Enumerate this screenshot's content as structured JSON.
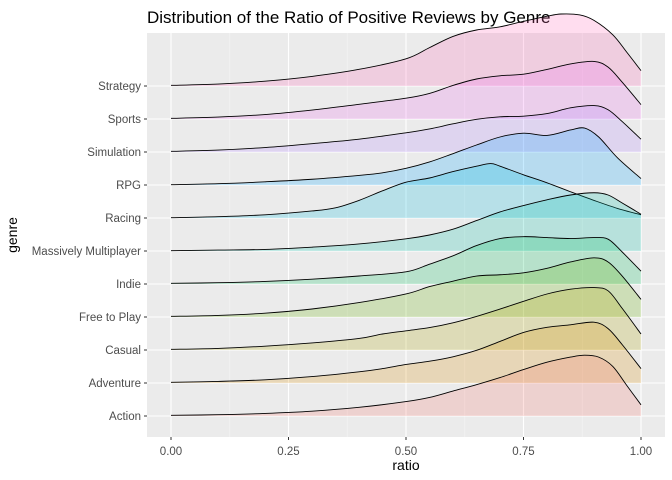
{
  "chart_data": {
    "type": "ridgeline",
    "title": "Distribution of the Ratio of Positive Reviews by Genre",
    "xlabel": "ratio",
    "ylabel": "genre",
    "xlim": [
      0,
      1
    ],
    "x_ticks": [
      "0.00",
      "0.25",
      "0.50",
      "0.75",
      "1.00"
    ],
    "grid": true,
    "legend": "none",
    "series": [
      {
        "name": "Action",
        "color": "#F8766D",
        "density": [
          [
            0,
            0.02
          ],
          [
            0.1,
            0.04
          ],
          [
            0.2,
            0.08
          ],
          [
            0.3,
            0.15
          ],
          [
            0.4,
            0.27
          ],
          [
            0.5,
            0.45
          ],
          [
            0.55,
            0.58
          ],
          [
            0.6,
            0.78
          ],
          [
            0.65,
            0.98
          ],
          [
            0.7,
            1.2
          ],
          [
            0.75,
            1.45
          ],
          [
            0.8,
            1.68
          ],
          [
            0.85,
            1.84
          ],
          [
            0.88,
            1.9
          ],
          [
            0.91,
            1.84
          ],
          [
            0.94,
            1.55
          ],
          [
            0.97,
            0.95
          ],
          [
            1,
            0.35
          ]
        ]
      },
      {
        "name": "Adventure",
        "color": "#DB8E00",
        "density": [
          [
            0,
            0.02
          ],
          [
            0.1,
            0.05
          ],
          [
            0.2,
            0.1
          ],
          [
            0.3,
            0.2
          ],
          [
            0.4,
            0.35
          ],
          [
            0.45,
            0.45
          ],
          [
            0.5,
            0.58
          ],
          [
            0.55,
            0.68
          ],
          [
            0.6,
            0.82
          ],
          [
            0.65,
            1.02
          ],
          [
            0.7,
            1.3
          ],
          [
            0.75,
            1.58
          ],
          [
            0.8,
            1.74
          ],
          [
            0.85,
            1.82
          ],
          [
            0.9,
            1.9
          ],
          [
            0.93,
            1.7
          ],
          [
            0.96,
            1.2
          ],
          [
            1,
            0.45
          ]
        ]
      },
      {
        "name": "Casual",
        "color": "#AEA200",
        "density": [
          [
            0,
            0.02
          ],
          [
            0.1,
            0.05
          ],
          [
            0.2,
            0.12
          ],
          [
            0.3,
            0.22
          ],
          [
            0.4,
            0.36
          ],
          [
            0.45,
            0.5
          ],
          [
            0.5,
            0.6
          ],
          [
            0.55,
            0.7
          ],
          [
            0.6,
            0.85
          ],
          [
            0.65,
            1.05
          ],
          [
            0.7,
            1.28
          ],
          [
            0.75,
            1.52
          ],
          [
            0.8,
            1.75
          ],
          [
            0.85,
            1.9
          ],
          [
            0.9,
            1.95
          ],
          [
            0.93,
            1.85
          ],
          [
            0.96,
            1.3
          ],
          [
            1,
            0.5
          ]
        ]
      },
      {
        "name": "Free to Play",
        "color": "#64B200",
        "density": [
          [
            0,
            0.02
          ],
          [
            0.1,
            0.05
          ],
          [
            0.2,
            0.12
          ],
          [
            0.3,
            0.25
          ],
          [
            0.4,
            0.45
          ],
          [
            0.5,
            0.72
          ],
          [
            0.55,
            0.95
          ],
          [
            0.6,
            1.12
          ],
          [
            0.65,
            1.28
          ],
          [
            0.7,
            1.32
          ],
          [
            0.75,
            1.38
          ],
          [
            0.8,
            1.52
          ],
          [
            0.85,
            1.72
          ],
          [
            0.9,
            1.85
          ],
          [
            0.93,
            1.72
          ],
          [
            0.96,
            1.28
          ],
          [
            1,
            0.55
          ]
        ]
      },
      {
        "name": "Indie",
        "color": "#00BD5C",
        "density": [
          [
            0,
            0.02
          ],
          [
            0.1,
            0.04
          ],
          [
            0.2,
            0.08
          ],
          [
            0.3,
            0.15
          ],
          [
            0.4,
            0.25
          ],
          [
            0.5,
            0.38
          ],
          [
            0.55,
            0.62
          ],
          [
            0.6,
            0.88
          ],
          [
            0.65,
            1.2
          ],
          [
            0.7,
            1.42
          ],
          [
            0.75,
            1.48
          ],
          [
            0.8,
            1.45
          ],
          [
            0.85,
            1.42
          ],
          [
            0.9,
            1.45
          ],
          [
            0.93,
            1.4
          ],
          [
            0.96,
            1.0
          ],
          [
            1,
            0.4
          ]
        ]
      },
      {
        "name": "Massively Multiplayer",
        "color": "#00C1A7",
        "density": [
          [
            0,
            0.01
          ],
          [
            0.1,
            0.03
          ],
          [
            0.2,
            0.05
          ],
          [
            0.3,
            0.12
          ],
          [
            0.4,
            0.22
          ],
          [
            0.5,
            0.38
          ],
          [
            0.55,
            0.5
          ],
          [
            0.6,
            0.68
          ],
          [
            0.65,
            0.95
          ],
          [
            0.7,
            1.22
          ],
          [
            0.75,
            1.42
          ],
          [
            0.8,
            1.6
          ],
          [
            0.85,
            1.75
          ],
          [
            0.9,
            1.82
          ],
          [
            0.93,
            1.75
          ],
          [
            0.96,
            1.5
          ],
          [
            1,
            1.15
          ]
        ]
      },
      {
        "name": "Racing",
        "color": "#00BADE",
        "density": [
          [
            0,
            0.01
          ],
          [
            0.1,
            0.04
          ],
          [
            0.2,
            0.1
          ],
          [
            0.3,
            0.22
          ],
          [
            0.35,
            0.32
          ],
          [
            0.4,
            0.55
          ],
          [
            0.45,
            0.85
          ],
          [
            0.5,
            1.12
          ],
          [
            0.55,
            1.25
          ],
          [
            0.6,
            1.45
          ],
          [
            0.65,
            1.62
          ],
          [
            0.68,
            1.7
          ],
          [
            0.7,
            1.62
          ],
          [
            0.75,
            1.35
          ],
          [
            0.8,
            1.1
          ],
          [
            0.85,
            0.82
          ],
          [
            0.9,
            0.55
          ],
          [
            0.95,
            0.3
          ],
          [
            1,
            0.1
          ]
        ]
      },
      {
        "name": "RPG",
        "color": "#00A6FF",
        "density": [
          [
            0,
            0.01
          ],
          [
            0.1,
            0.04
          ],
          [
            0.2,
            0.1
          ],
          [
            0.3,
            0.18
          ],
          [
            0.4,
            0.3
          ],
          [
            0.45,
            0.38
          ],
          [
            0.5,
            0.52
          ],
          [
            0.55,
            0.72
          ],
          [
            0.6,
            0.98
          ],
          [
            0.65,
            1.25
          ],
          [
            0.7,
            1.5
          ],
          [
            0.75,
            1.62
          ],
          [
            0.8,
            1.55
          ],
          [
            0.85,
            1.72
          ],
          [
            0.88,
            1.78
          ],
          [
            0.91,
            1.5
          ],
          [
            0.95,
            0.85
          ],
          [
            1,
            0.2
          ]
        ]
      },
      {
        "name": "Simulation",
        "color": "#B385FF",
        "density": [
          [
            0,
            0.02
          ],
          [
            0.1,
            0.06
          ],
          [
            0.2,
            0.14
          ],
          [
            0.3,
            0.26
          ],
          [
            0.4,
            0.4
          ],
          [
            0.5,
            0.6
          ],
          [
            0.55,
            0.72
          ],
          [
            0.6,
            0.88
          ],
          [
            0.65,
            1.02
          ],
          [
            0.7,
            1.1
          ],
          [
            0.75,
            1.12
          ],
          [
            0.8,
            1.2
          ],
          [
            0.85,
            1.38
          ],
          [
            0.9,
            1.45
          ],
          [
            0.93,
            1.32
          ],
          [
            0.96,
            0.95
          ],
          [
            1,
            0.4
          ]
        ]
      },
      {
        "name": "Sports",
        "color": "#EF67EB",
        "density": [
          [
            0,
            0.02
          ],
          [
            0.1,
            0.06
          ],
          [
            0.2,
            0.14
          ],
          [
            0.3,
            0.28
          ],
          [
            0.4,
            0.46
          ],
          [
            0.5,
            0.65
          ],
          [
            0.55,
            0.8
          ],
          [
            0.6,
            1.05
          ],
          [
            0.65,
            1.25
          ],
          [
            0.7,
            1.35
          ],
          [
            0.75,
            1.4
          ],
          [
            0.8,
            1.55
          ],
          [
            0.85,
            1.72
          ],
          [
            0.9,
            1.8
          ],
          [
            0.93,
            1.62
          ],
          [
            0.96,
            1.15
          ],
          [
            1,
            0.45
          ]
        ]
      },
      {
        "name": "Strategy",
        "color": "#FF63B6",
        "density": [
          [
            0,
            0.02
          ],
          [
            0.1,
            0.06
          ],
          [
            0.2,
            0.15
          ],
          [
            0.3,
            0.3
          ],
          [
            0.4,
            0.52
          ],
          [
            0.5,
            0.85
          ],
          [
            0.55,
            1.2
          ],
          [
            0.6,
            1.55
          ],
          [
            0.65,
            1.75
          ],
          [
            0.7,
            1.85
          ],
          [
            0.75,
            2.02
          ],
          [
            0.8,
            2.18
          ],
          [
            0.83,
            2.25
          ],
          [
            0.87,
            2.22
          ],
          [
            0.9,
            2.05
          ],
          [
            0.94,
            1.6
          ],
          [
            0.97,
            1.05
          ],
          [
            1,
            0.48
          ]
        ]
      }
    ]
  }
}
